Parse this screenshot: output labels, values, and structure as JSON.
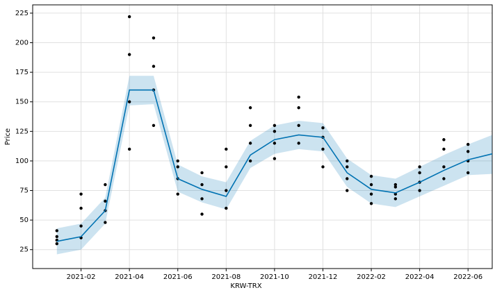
{
  "chart_data": {
    "type": "forecast",
    "xlabel": "KRW-TRX",
    "ylabel": "Price",
    "xlim": [
      "2020-12",
      "2022-07"
    ],
    "xticks": [
      "2021-02",
      "2021-04",
      "2021-06",
      "2021-08",
      "2021-10",
      "2021-12",
      "2022-02",
      "2022-04",
      "2022-06"
    ],
    "ylim": [
      9,
      232
    ],
    "yticks": [
      25,
      50,
      75,
      100,
      125,
      150,
      175,
      200,
      225
    ],
    "grid": true,
    "observed": {
      "color": "#000000",
      "x": [
        "2021-01",
        "2021-01",
        "2021-01",
        "2021-01",
        "2021-02",
        "2021-02",
        "2021-02",
        "2021-02",
        "2021-03",
        "2021-03",
        "2021-03",
        "2021-03",
        "2021-04",
        "2021-04",
        "2021-04",
        "2021-04",
        "2021-05",
        "2021-05",
        "2021-05",
        "2021-05",
        "2021-06",
        "2021-06",
        "2021-06",
        "2021-06",
        "2021-07",
        "2021-07",
        "2021-07",
        "2021-07",
        "2021-08",
        "2021-08",
        "2021-08",
        "2021-08",
        "2021-09",
        "2021-09",
        "2021-09",
        "2021-09",
        "2021-10",
        "2021-10",
        "2021-10",
        "2021-10",
        "2021-11",
        "2021-11",
        "2021-11",
        "2021-11",
        "2021-12",
        "2021-12",
        "2021-12",
        "2021-12",
        "2022-01",
        "2022-01",
        "2022-01",
        "2022-01",
        "2022-02",
        "2022-02",
        "2022-02",
        "2022-02",
        "2022-03",
        "2022-03",
        "2022-03",
        "2022-03",
        "2022-04",
        "2022-04",
        "2022-04",
        "2022-04",
        "2022-05",
        "2022-05",
        "2022-05",
        "2022-05",
        "2022-06",
        "2022-06",
        "2022-06",
        "2022-06"
      ],
      "values": [
        30,
        33,
        36,
        41,
        35,
        45,
        60,
        72,
        48,
        58,
        66,
        80,
        110,
        150,
        190,
        222,
        130,
        160,
        180,
        204,
        72,
        85,
        95,
        100,
        55,
        68,
        80,
        90,
        60,
        75,
        95,
        110,
        100,
        115,
        130,
        145,
        102,
        115,
        125,
        130,
        115,
        130,
        145,
        154,
        95,
        110,
        120,
        128,
        75,
        85,
        95,
        100,
        64,
        72,
        80,
        87,
        68,
        72,
        78,
        80,
        75,
        82,
        90,
        95,
        85,
        95,
        110,
        118,
        90,
        100,
        108,
        114
      ]
    },
    "forecast": {
      "color": "#0072b2",
      "x": [
        "2021-01",
        "2021-02",
        "2021-03",
        "2021-04",
        "2021-05",
        "2021-06",
        "2021-07",
        "2021-08",
        "2021-09",
        "2021-10",
        "2021-11",
        "2021-12",
        "2022-01",
        "2022-02",
        "2022-03",
        "2022-04",
        "2022-05",
        "2022-06",
        "2022-07"
      ],
      "values": [
        32,
        36,
        58,
        160,
        160,
        85,
        76,
        70,
        105,
        118,
        122,
        120,
        90,
        76,
        73,
        82,
        92,
        101,
        106
      ],
      "lower": [
        21,
        25,
        47,
        147,
        148,
        74,
        65,
        59,
        94,
        106,
        110,
        108,
        78,
        64,
        61,
        70,
        79,
        88,
        89
      ],
      "upper": [
        43,
        47,
        69,
        172,
        172,
        97,
        87,
        82,
        117,
        130,
        134,
        132,
        102,
        88,
        85,
        95,
        105,
        114,
        122
      ]
    }
  }
}
